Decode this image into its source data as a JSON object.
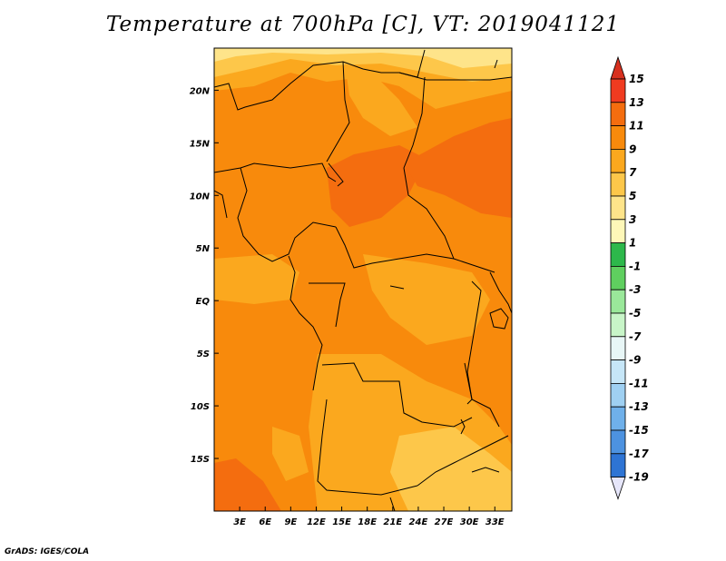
{
  "title": "Temperature at 700hPa [C], VT: 2019041121",
  "credit": "GrADS: IGES/COLA",
  "map": {
    "lon_range": [
      0,
      35
    ],
    "lat_range": [
      -20,
      24
    ],
    "x_ticks": [
      {
        "value": 3,
        "label": "3E"
      },
      {
        "value": 6,
        "label": "6E"
      },
      {
        "value": 9,
        "label": "9E"
      },
      {
        "value": 12,
        "label": "12E"
      },
      {
        "value": 15,
        "label": "15E"
      },
      {
        "value": 18,
        "label": "18E"
      },
      {
        "value": 21,
        "label": "21E"
      },
      {
        "value": 24,
        "label": "24E"
      },
      {
        "value": 27,
        "label": "27E"
      },
      {
        "value": 30,
        "label": "30E"
      },
      {
        "value": 33,
        "label": "33E"
      }
    ],
    "y_ticks": [
      {
        "value": 20,
        "label": "20N"
      },
      {
        "value": 15,
        "label": "15N"
      },
      {
        "value": 10,
        "label": "10N"
      },
      {
        "value": 5,
        "label": "5N"
      },
      {
        "value": 0,
        "label": "EQ"
      },
      {
        "value": -5,
        "label": "5S"
      },
      {
        "value": -10,
        "label": "10S"
      },
      {
        "value": -15,
        "label": "15S"
      }
    ]
  },
  "colorbar": {
    "labels": [
      "15",
      "13",
      "11",
      "9",
      "7",
      "5",
      "3",
      "1",
      "-1",
      "-3",
      "-5",
      "-7",
      "-9",
      "-11",
      "-13",
      "-15",
      "-17",
      "-19"
    ],
    "top_arrow_color": "#d7301f",
    "bottom_arrow_color": "#e6e6fa",
    "colors": [
      "#f03b20",
      "#f46d0f",
      "#f88a0c",
      "#fba81e",
      "#fdc74a",
      "#fee48a",
      "#fef7b8",
      "#2db84b",
      "#5fcf5f",
      "#9ae89a",
      "#c8f5c8",
      "#e8f6f6",
      "#c6e6f7",
      "#9fd0f2",
      "#6fb0ea",
      "#4d92e0",
      "#2e74d4",
      "#1f55c2",
      "#1639a8",
      "#0b1f7a",
      "#101050"
    ]
  },
  "field_colors": {
    "t5": "#fee48a",
    "t7": "#fdc74a",
    "t9": "#fba81e",
    "t11": "#f88a0c",
    "t13": "#f46d0f"
  }
}
